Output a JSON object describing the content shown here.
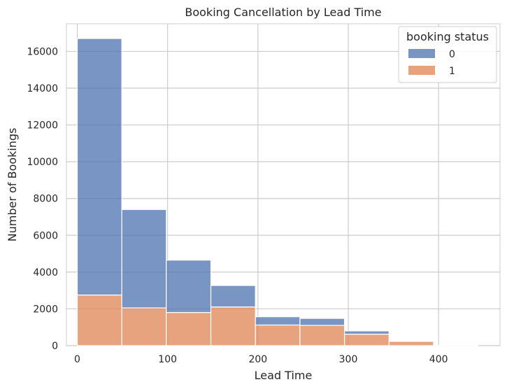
{
  "chart_data": {
    "type": "bar",
    "title": "Booking Cancellation by Lead Time",
    "xlabel": "Lead Time",
    "ylabel": "Number of Bookings",
    "xlim": [
      -12,
      468
    ],
    "ylim": [
      0,
      17500
    ],
    "x_ticks": [
      0,
      100,
      200,
      300,
      400
    ],
    "y_ticks": [
      0,
      2000,
      4000,
      6000,
      8000,
      10000,
      12000,
      14000,
      16000
    ],
    "grid": true,
    "stacked": true,
    "bins": [
      [
        0,
        49.3
      ],
      [
        49.3,
        98.6
      ],
      [
        98.6,
        147.9
      ],
      [
        147.9,
        197.2
      ],
      [
        197.2,
        246.5
      ],
      [
        246.5,
        295.8
      ],
      [
        295.8,
        345.1
      ],
      [
        345.1,
        394.4
      ],
      [
        394.4,
        443.7
      ]
    ],
    "legend": {
      "title": "booking status",
      "position": "top-right"
    },
    "series": [
      {
        "name": "0",
        "color": "#4c72b0",
        "values": [
          13950,
          5350,
          2850,
          1170,
          450,
          380,
          180,
          10,
          0
        ]
      },
      {
        "name": "1",
        "color": "#dd8452",
        "values": [
          2750,
          2050,
          1800,
          2100,
          1120,
          1100,
          620,
          230,
          10
        ]
      }
    ]
  }
}
